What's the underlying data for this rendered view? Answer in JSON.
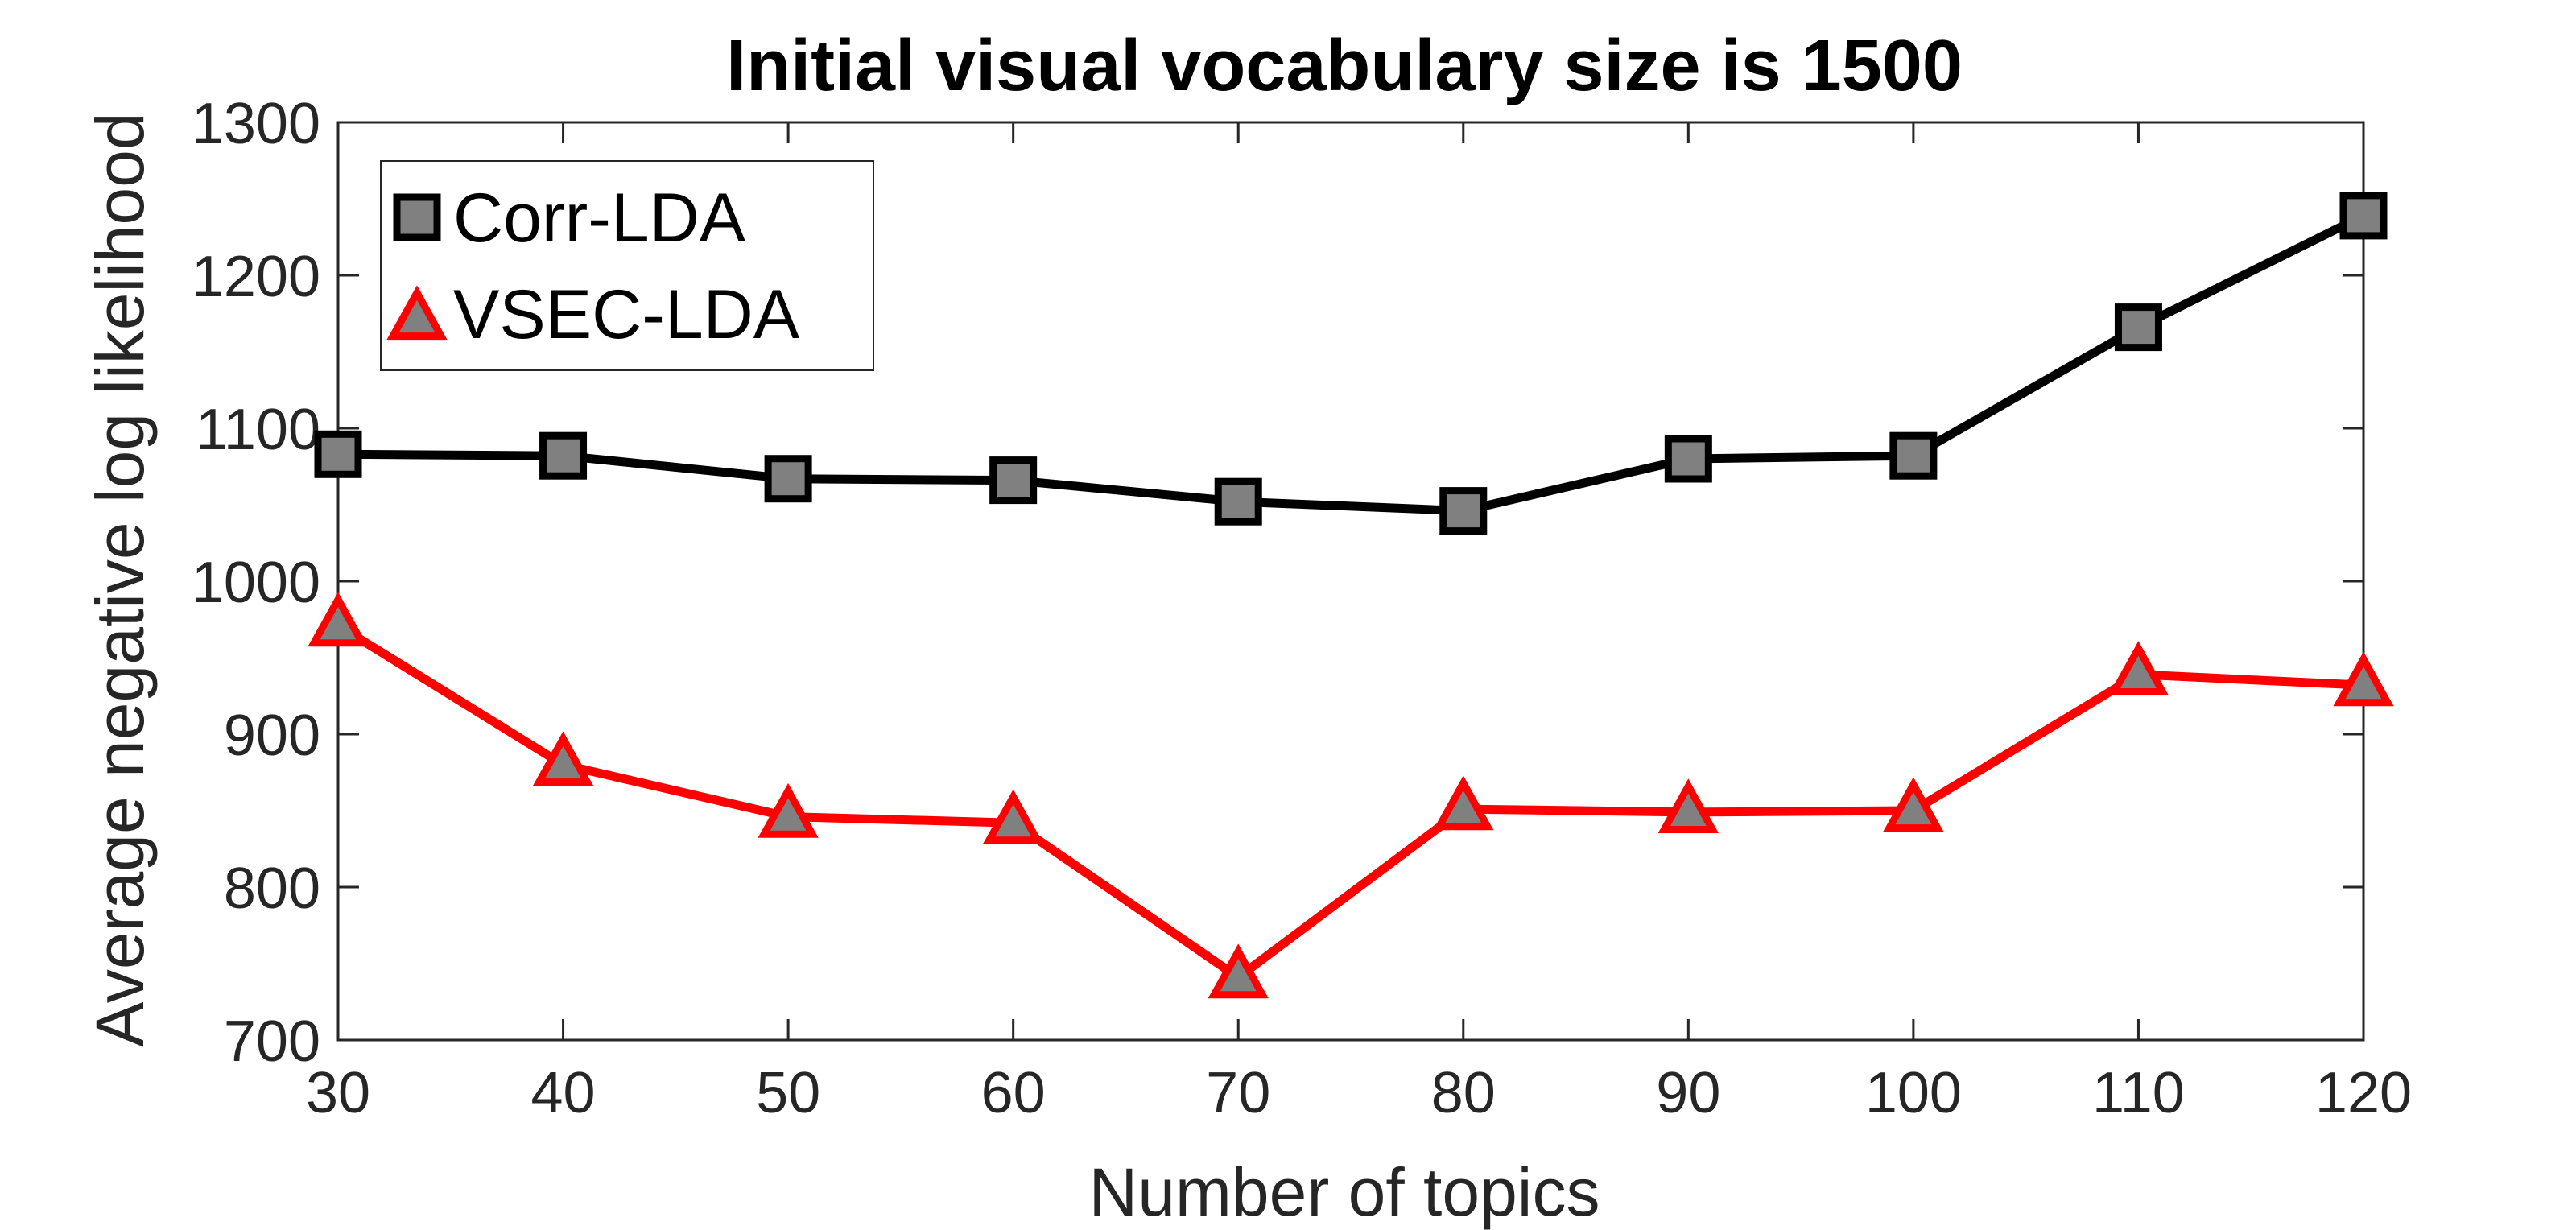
{
  "chart_data": {
    "type": "line",
    "title": "Initial visual vocabulary size is 1500",
    "xlabel": "Number of topics",
    "ylabel": "Average negative log likelihood",
    "x": [
      30,
      40,
      50,
      60,
      70,
      80,
      90,
      100,
      110,
      120
    ],
    "xlim": [
      30,
      120
    ],
    "ylim": [
      700,
      1300
    ],
    "xticks": [
      30,
      40,
      50,
      60,
      70,
      80,
      90,
      100,
      110,
      120
    ],
    "yticks": [
      700,
      800,
      900,
      1000,
      1100,
      1200,
      1300
    ],
    "grid": false,
    "legend_position": "top-left",
    "series": [
      {
        "name": "Corr-LDA",
        "values": [
          1083,
          1082,
          1067,
          1066,
          1052,
          1046,
          1080,
          1082,
          1166,
          1239
        ],
        "color": "#000000",
        "marker": "square",
        "marker_fill": "#808080"
      },
      {
        "name": "VSEC-LDA",
        "values": [
          971,
          880,
          846,
          842,
          741,
          851,
          849,
          850,
          939,
          932
        ],
        "color": "#ff0000",
        "marker": "triangle",
        "marker_fill": "#808080"
      }
    ]
  }
}
